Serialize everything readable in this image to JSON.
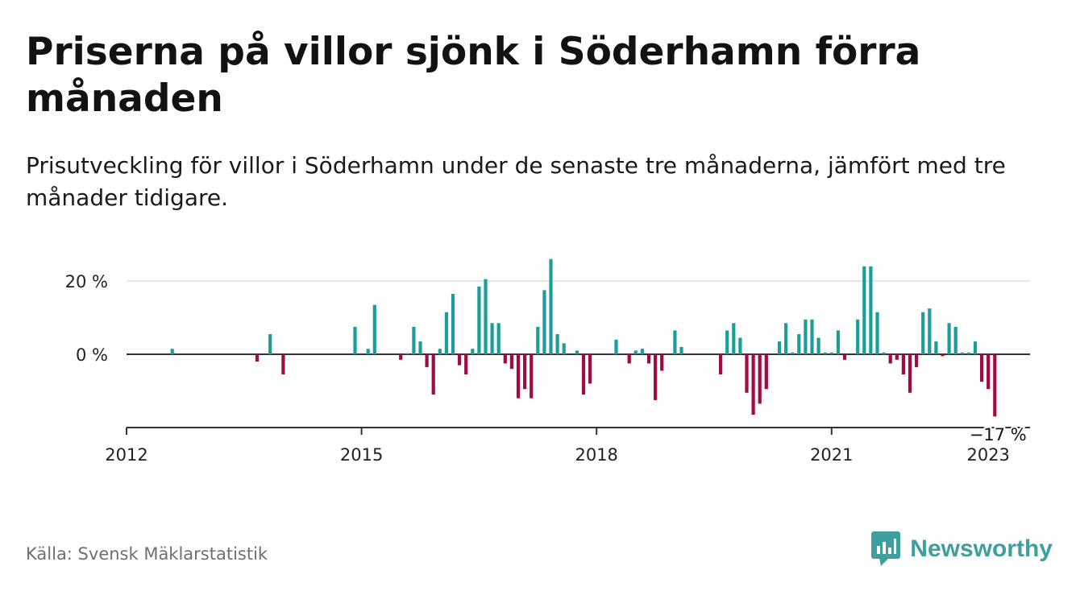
{
  "title": "Priserna på villor sjönk i Söderhamn förra månaden",
  "subtitle": "Prisutveckling för villor i Söderhamn under de senaste tre månaderna, jämfört med tre månader tidigare.",
  "source": "Källa: Svensk Mäklarstatistik",
  "brand": "Newsworthy",
  "colors": {
    "positive": "#1a9e9b",
    "negative": "#a00b45",
    "brand": "#3f9e9e",
    "grid": "#dddddd",
    "axis": "#333333"
  },
  "chart_data": {
    "type": "bar",
    "x_label_ticks": [
      "2012",
      "2015",
      "2018",
      "2021",
      "2023"
    ],
    "y_ticks": [
      0,
      20
    ],
    "y_tick_labels": [
      "0 %",
      "20 %"
    ],
    "ylim": [
      -20,
      26
    ],
    "last_value_label": "−17 %",
    "grid": true,
    "series": [
      {
        "values": [
          {
            "x": "2012-08",
            "y": 1.5
          },
          {
            "x": "2013-09",
            "y": -2
          },
          {
            "x": "2013-11",
            "y": 5.5
          },
          {
            "x": "2014-01",
            "y": -5.5
          },
          {
            "x": "2014-12",
            "y": 7.5
          },
          {
            "x": "2015-02",
            "y": 1.5
          },
          {
            "x": "2015-03",
            "y": 13.5
          },
          {
            "x": "2015-07",
            "y": -1.5
          },
          {
            "x": "2015-08",
            "y": 0.3
          },
          {
            "x": "2015-09",
            "y": 7.5
          },
          {
            "x": "2015-10",
            "y": 3.5
          },
          {
            "x": "2015-11",
            "y": -3.5
          },
          {
            "x": "2015-12",
            "y": -11
          },
          {
            "x": "2016-01",
            "y": 1.5
          },
          {
            "x": "2016-02",
            "y": 11.5
          },
          {
            "x": "2016-03",
            "y": 16.5
          },
          {
            "x": "2016-04",
            "y": -3
          },
          {
            "x": "2016-05",
            "y": -5.5
          },
          {
            "x": "2016-06",
            "y": 1.5
          },
          {
            "x": "2016-07",
            "y": 18.5
          },
          {
            "x": "2016-08",
            "y": 20.5
          },
          {
            "x": "2016-09",
            "y": 8.5
          },
          {
            "x": "2016-10",
            "y": 8.5
          },
          {
            "x": "2016-11",
            "y": -2.5
          },
          {
            "x": "2016-12",
            "y": -4
          },
          {
            "x": "2017-01",
            "y": -12
          },
          {
            "x": "2017-02",
            "y": -9.5
          },
          {
            "x": "2017-03",
            "y": -12
          },
          {
            "x": "2017-04",
            "y": 7.5
          },
          {
            "x": "2017-05",
            "y": 17.5
          },
          {
            "x": "2017-06",
            "y": 26
          },
          {
            "x": "2017-07",
            "y": 5.5
          },
          {
            "x": "2017-08",
            "y": 3
          },
          {
            "x": "2017-10",
            "y": 1
          },
          {
            "x": "2017-11",
            "y": -11
          },
          {
            "x": "2017-12",
            "y": -8
          },
          {
            "x": "2018-04",
            "y": 4
          },
          {
            "x": "2018-06",
            "y": -2.5
          },
          {
            "x": "2018-07",
            "y": 1
          },
          {
            "x": "2018-08",
            "y": 1.5
          },
          {
            "x": "2018-09",
            "y": -2.5
          },
          {
            "x": "2018-10",
            "y": -12.5
          },
          {
            "x": "2018-11",
            "y": -4.5
          },
          {
            "x": "2019-01",
            "y": 6.5
          },
          {
            "x": "2019-02",
            "y": 2
          },
          {
            "x": "2019-08",
            "y": -5.5
          },
          {
            "x": "2019-09",
            "y": 6.5
          },
          {
            "x": "2019-10",
            "y": 8.5
          },
          {
            "x": "2019-11",
            "y": 4.5
          },
          {
            "x": "2019-12",
            "y": -10.5
          },
          {
            "x": "2020-01",
            "y": -16.5
          },
          {
            "x": "2020-02",
            "y": -13.5
          },
          {
            "x": "2020-03",
            "y": -9.5
          },
          {
            "x": "2020-05",
            "y": 3.5
          },
          {
            "x": "2020-06",
            "y": 8.5
          },
          {
            "x": "2020-07",
            "y": 0.5
          },
          {
            "x": "2020-08",
            "y": 5.5
          },
          {
            "x": "2020-09",
            "y": 9.5
          },
          {
            "x": "2020-10",
            "y": 9.5
          },
          {
            "x": "2020-11",
            "y": 4.5
          },
          {
            "x": "2020-12",
            "y": 0.5
          },
          {
            "x": "2021-01",
            "y": 0.5
          },
          {
            "x": "2021-02",
            "y": 6.5
          },
          {
            "x": "2021-03",
            "y": -1.5
          },
          {
            "x": "2021-05",
            "y": 9.5
          },
          {
            "x": "2021-06",
            "y": 24
          },
          {
            "x": "2021-07",
            "y": 24
          },
          {
            "x": "2021-08",
            "y": 11.5
          },
          {
            "x": "2021-09",
            "y": 0.5
          },
          {
            "x": "2021-10",
            "y": -2.5
          },
          {
            "x": "2021-11",
            "y": -1.5
          },
          {
            "x": "2021-12",
            "y": -5.5
          },
          {
            "x": "2022-01",
            "y": -10.5
          },
          {
            "x": "2022-02",
            "y": -3.5
          },
          {
            "x": "2022-03",
            "y": 11.5
          },
          {
            "x": "2022-04",
            "y": 12.5
          },
          {
            "x": "2022-05",
            "y": 3.5
          },
          {
            "x": "2022-06",
            "y": -0.5
          },
          {
            "x": "2022-07",
            "y": 8.5
          },
          {
            "x": "2022-08",
            "y": 7.5
          },
          {
            "x": "2022-09",
            "y": 0.5
          },
          {
            "x": "2022-10",
            "y": 0.5
          },
          {
            "x": "2022-11",
            "y": 3.5
          },
          {
            "x": "2022-12",
            "y": -7.5
          },
          {
            "x": "2023-01",
            "y": -9.5
          },
          {
            "x": "2023-02",
            "y": -17
          }
        ]
      }
    ]
  }
}
